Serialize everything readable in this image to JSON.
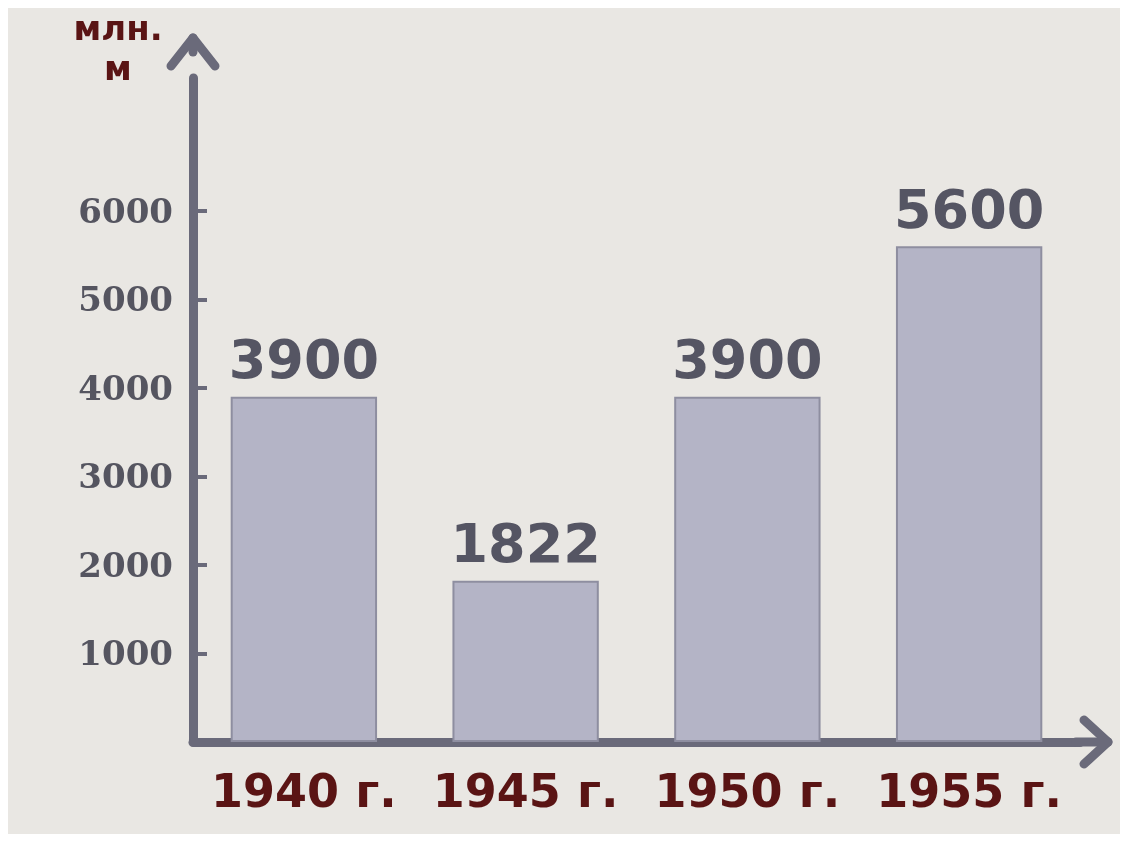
{
  "chart_data": {
    "type": "bar",
    "ylabel": "млн.\nм",
    "categories": [
      "1940 г.",
      "1945 г.",
      "1950 г.",
      "1955 г."
    ],
    "values": [
      3900,
      1822,
      3900,
      5600
    ],
    "color": "#b4b4c6",
    "ylim": [
      0,
      7500
    ],
    "yticks": [
      1000,
      2000,
      3000,
      4000,
      5000,
      6000
    ],
    "data_labels": true,
    "grid": false
  }
}
